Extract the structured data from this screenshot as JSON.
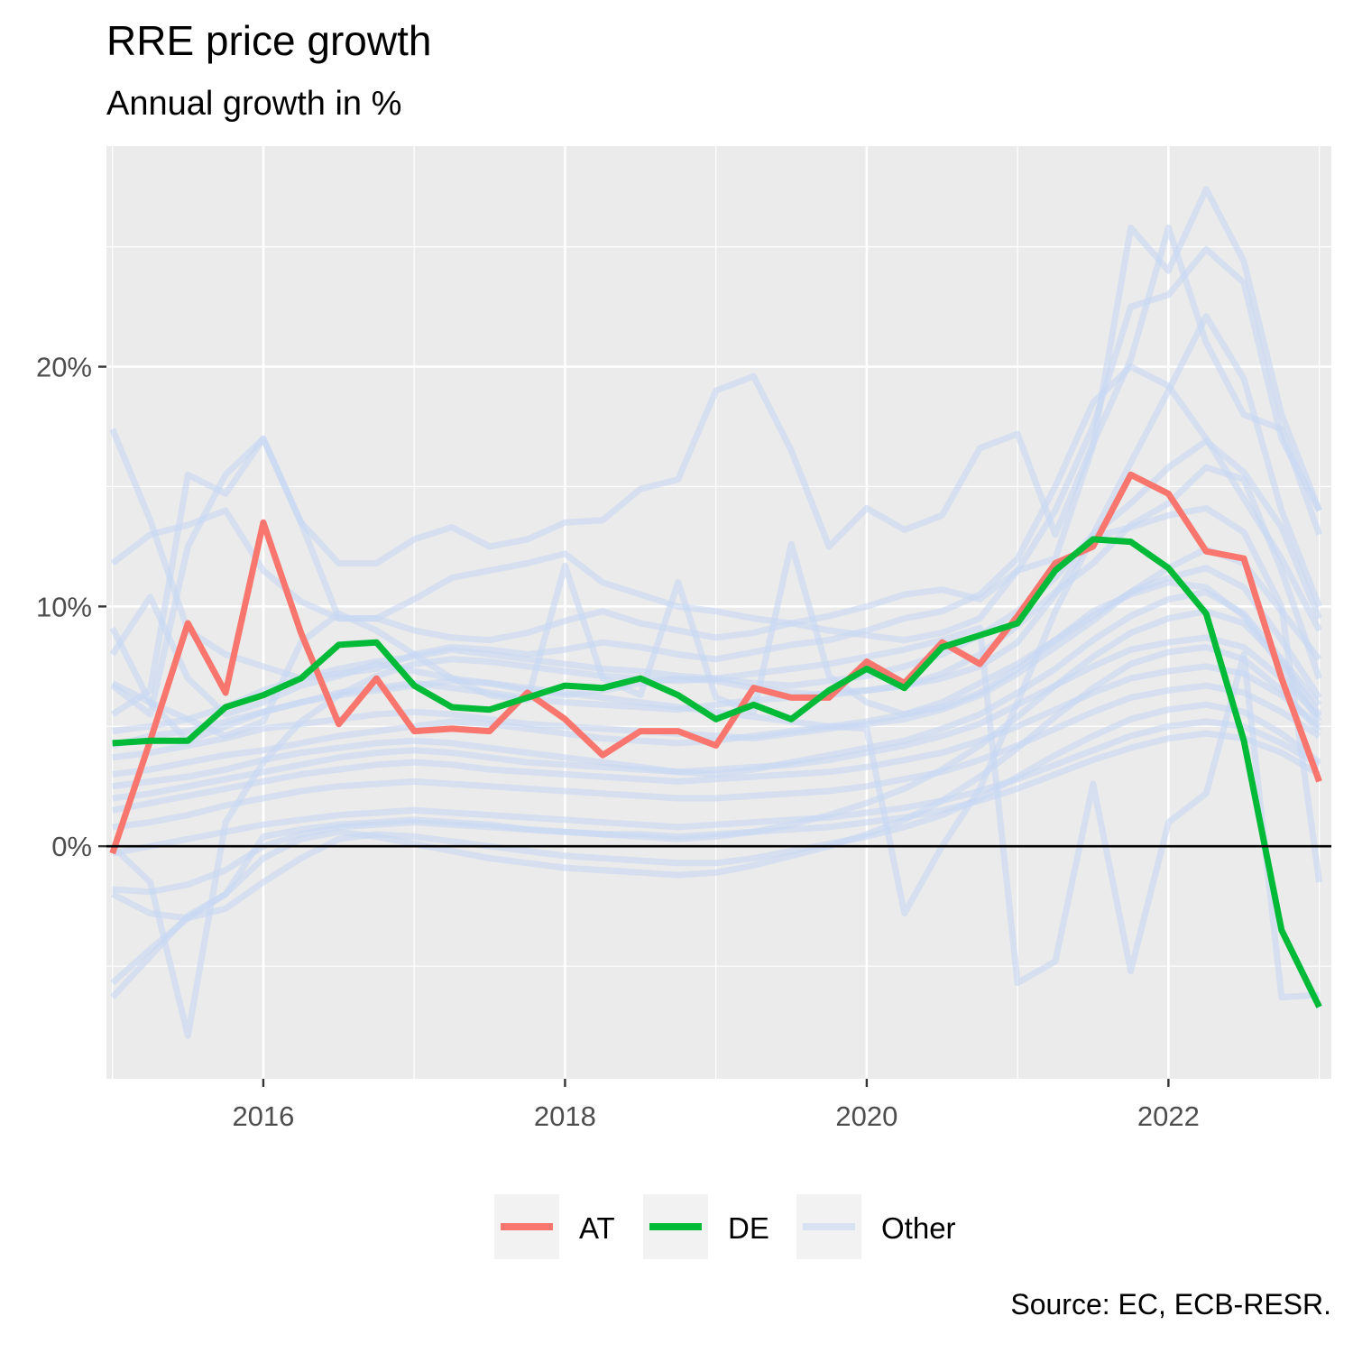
{
  "chart_data": {
    "type": "line",
    "title": "RRE price growth",
    "subtitle": "Annual growth in %",
    "caption": "Source: EC, ECB-RESR.",
    "xlabel": "",
    "ylabel": "",
    "x_ticks": [
      "2016",
      "2018",
      "2020",
      "2022"
    ],
    "y_ticks": [
      "0%",
      "10%",
      "20%"
    ],
    "xlim": [
      2014.96,
      2023.08
    ],
    "ylim": [
      -9.7,
      29.2
    ],
    "grid": true,
    "legend_position": "bottom",
    "x": [
      2015.0,
      2015.25,
      2015.5,
      2015.75,
      2016.0,
      2016.25,
      2016.5,
      2016.75,
      2017.0,
      2017.25,
      2017.5,
      2017.75,
      2018.0,
      2018.25,
      2018.5,
      2018.75,
      2019.0,
      2019.25,
      2019.5,
      2019.75,
      2020.0,
      2020.25,
      2020.5,
      2020.75,
      2021.0,
      2021.25,
      2021.5,
      2021.75,
      2022.0,
      2022.25,
      2022.5,
      2022.75,
      2023.0
    ],
    "series": [
      {
        "name": "Other",
        "color": "#c6d7f3",
        "values": [
          17.4,
          13.6,
          9.0,
          8.0,
          7.5,
          7.0,
          7.2,
          7.4,
          8.0,
          8.3,
          8.2,
          8.0,
          8.2,
          8.5,
          8.3,
          8.0,
          7.8,
          8.1,
          8.4,
          8.6,
          9.0,
          9.5,
          9.8,
          10.5,
          12.0,
          15.0,
          18.5,
          20.0,
          19.2,
          17.0,
          14.5,
          12.0,
          9.0
        ]
      },
      {
        "name": "Other",
        "color": "#c6d7f3",
        "values": [
          11.8,
          13.0,
          13.4,
          14.0,
          11.5,
          10.2,
          9.5,
          9.5,
          10.3,
          11.2,
          11.5,
          11.8,
          12.2,
          11.0,
          10.5,
          10.0,
          9.8,
          9.5,
          9.3,
          9.0,
          8.8,
          8.6,
          8.9,
          9.5,
          11.5,
          14.0,
          17.5,
          22.5,
          23.0,
          24.9,
          23.5,
          17.0,
          14.0
        ]
      },
      {
        "name": "Other",
        "color": "#c6d7f3",
        "values": [
          8.0,
          10.4,
          7.0,
          5.5,
          6.0,
          6.7,
          7.1,
          7.6,
          7.3,
          7.0,
          6.8,
          6.5,
          6.3,
          6.5,
          6.8,
          7.0,
          6.9,
          6.6,
          6.4,
          6.3,
          6.5,
          6.7,
          7.0,
          7.5,
          8.5,
          10.5,
          13.0,
          16.0,
          19.0,
          22.1,
          19.5,
          14.0,
          10.0
        ]
      },
      {
        "name": "Other",
        "color": "#c6d7f3",
        "values": [
          6.7,
          5.5,
          12.5,
          15.5,
          17.0,
          13.5,
          11.8,
          11.8,
          12.8,
          13.3,
          12.5,
          12.8,
          13.5,
          13.6,
          14.9,
          15.3,
          19.0,
          19.6,
          16.5,
          12.5,
          14.1,
          13.2,
          13.8,
          16.6,
          17.2,
          13.0,
          16.8,
          20.3,
          25.8,
          21.0,
          18.0,
          17.4,
          13.0
        ]
      },
      {
        "name": "Other",
        "color": "#c6d7f3",
        "values": [
          5.5,
          6.5,
          15.5,
          14.7,
          17.0,
          13.5,
          9.5,
          9.5,
          9.0,
          8.7,
          8.6,
          8.9,
          9.4,
          9.8,
          9.3,
          9.0,
          8.7,
          8.9,
          9.3,
          9.6,
          10.0,
          10.5,
          10.7,
          10.3,
          11.5,
          12.0,
          16.7,
          25.8,
          24.0,
          27.4,
          24.4,
          18.0,
          14.0
        ]
      },
      {
        "name": "Other",
        "color": "#c6d7f3",
        "values": [
          4.8,
          5.0,
          5.3,
          5.8,
          6.5,
          7.0,
          7.4,
          7.7,
          7.9,
          8.2,
          8.0,
          7.8,
          7.6,
          7.4,
          7.3,
          7.1,
          7.0,
          6.8,
          6.7,
          6.9,
          7.1,
          7.5,
          8.0,
          8.8,
          9.8,
          11.2,
          13.0,
          14.3,
          15.8,
          16.9,
          15.6,
          13.3,
          9.5
        ]
      },
      {
        "name": "Other",
        "color": "#c6d7f3",
        "values": [
          4.2,
          4.6,
          4.8,
          5.2,
          5.6,
          6.0,
          6.4,
          6.6,
          6.8,
          6.6,
          6.4,
          6.2,
          6.0,
          5.9,
          5.8,
          5.7,
          5.9,
          6.1,
          6.2,
          6.4,
          6.5,
          6.7,
          7.2,
          8.0,
          9.2,
          10.6,
          11.8,
          13.4,
          14.3,
          15.8,
          15.3,
          11.5,
          7.0
        ]
      },
      {
        "name": "Other",
        "color": "#c6d7f3",
        "values": [
          3.7,
          3.9,
          4.2,
          4.5,
          4.9,
          5.1,
          5.3,
          5.5,
          5.6,
          5.5,
          5.3,
          5.1,
          5.0,
          4.9,
          4.8,
          4.7,
          4.6,
          4.5,
          4.7,
          4.9,
          5.1,
          5.3,
          5.7,
          6.3,
          7.2,
          8.3,
          9.4,
          10.6,
          11.6,
          12.4,
          11.8,
          9.8,
          7.8
        ]
      },
      {
        "name": "Other",
        "color": "#c6d7f3",
        "values": [
          3.0,
          3.2,
          3.5,
          3.8,
          4.0,
          4.3,
          4.6,
          4.8,
          5.0,
          5.2,
          5.1,
          4.9,
          4.7,
          4.5,
          4.4,
          4.3,
          4.4,
          4.6,
          4.8,
          5.0,
          5.2,
          5.5,
          6.0,
          6.8,
          7.6,
          8.6,
          9.6,
          10.6,
          11.2,
          11.6,
          10.8,
          8.6,
          6.2
        ]
      },
      {
        "name": "Other",
        "color": "#c6d7f3",
        "values": [
          2.5,
          2.7,
          2.9,
          3.2,
          3.6,
          3.9,
          4.1,
          4.3,
          4.4,
          4.3,
          4.1,
          3.9,
          3.7,
          3.5,
          3.3,
          3.1,
          3.0,
          3.2,
          3.5,
          3.8,
          4.1,
          4.4,
          4.9,
          5.5,
          6.4,
          7.4,
          8.6,
          9.6,
          10.3,
          10.6,
          9.7,
          7.8,
          5.9
        ]
      },
      {
        "name": "Other",
        "color": "#c6d7f3",
        "values": [
          2.0,
          2.2,
          2.5,
          2.8,
          3.1,
          3.4,
          3.7,
          3.9,
          4.0,
          3.9,
          3.7,
          3.5,
          3.4,
          3.3,
          3.2,
          3.1,
          3.2,
          3.3,
          3.4,
          3.6,
          3.9,
          4.2,
          4.6,
          5.1,
          5.9,
          6.7,
          7.5,
          8.2,
          8.5,
          8.7,
          8.3,
          7.0,
          5.4
        ]
      },
      {
        "name": "Other",
        "color": "#c6d7f3",
        "values": [
          1.5,
          1.8,
          2.1,
          2.4,
          2.7,
          3.0,
          3.2,
          3.4,
          3.5,
          3.4,
          3.2,
          3.1,
          3.0,
          2.9,
          2.8,
          2.7,
          2.8,
          2.9,
          3.0,
          3.1,
          3.3,
          3.6,
          3.9,
          4.4,
          5.0,
          5.7,
          6.4,
          7.0,
          7.3,
          7.5,
          7.2,
          6.3,
          5.0
        ]
      },
      {
        "name": "Other",
        "color": "#c6d7f3",
        "values": [
          0.8,
          1.0,
          1.3,
          1.7,
          2.0,
          2.3,
          2.5,
          2.6,
          2.7,
          2.6,
          2.5,
          2.4,
          2.3,
          2.2,
          2.1,
          2.0,
          2.0,
          2.1,
          2.2,
          2.3,
          2.5,
          2.8,
          3.1,
          3.6,
          4.2,
          4.9,
          5.6,
          6.2,
          6.5,
          6.7,
          6.4,
          5.6,
          4.6
        ]
      },
      {
        "name": "Other",
        "color": "#c6d7f3",
        "values": [
          -0.3,
          0.0,
          0.3,
          0.6,
          0.9,
          1.1,
          1.3,
          1.4,
          1.5,
          1.4,
          1.3,
          1.2,
          1.1,
          1.0,
          0.9,
          0.8,
          0.9,
          1.0,
          1.1,
          1.2,
          1.4,
          1.6,
          1.9,
          2.3,
          2.8,
          3.4,
          4.0,
          4.6,
          5.0,
          5.2,
          5.0,
          4.3,
          3.4
        ]
      },
      {
        "name": "Other",
        "color": "#c6d7f3",
        "values": [
          -1.8,
          -1.9,
          -1.6,
          -1.0,
          0.0,
          0.5,
          0.8,
          0.9,
          1.0,
          0.9,
          0.8,
          0.7,
          0.6,
          0.5,
          0.5,
          0.4,
          0.5,
          0.6,
          0.7,
          0.8,
          1.0,
          1.2,
          1.5,
          1.9,
          2.4,
          3.0,
          3.6,
          4.1,
          4.5,
          4.7,
          4.5,
          3.9,
          3.0
        ]
      },
      {
        "name": "Other",
        "color": "#c6d7f3",
        "values": [
          -2.0,
          -2.8,
          -3.0,
          -2.6,
          -1.5,
          -0.5,
          0.3,
          0.5,
          0.4,
          0.2,
          0.0,
          -0.2,
          -0.4,
          -0.5,
          -0.6,
          -0.7,
          -0.7,
          -0.5,
          -0.2,
          0.1,
          0.4,
          0.8,
          1.3,
          2.0,
          2.9,
          3.8,
          4.6,
          5.3,
          5.7,
          5.9,
          5.6,
          4.7,
          3.5
        ]
      },
      {
        "name": "Other",
        "color": "#c6d7f3",
        "values": [
          -5.7,
          -4.3,
          -3.0,
          -2.0,
          -0.5,
          0.3,
          0.6,
          0.4,
          0.1,
          -0.2,
          -0.5,
          -0.7,
          -0.9,
          -1.0,
          -1.1,
          -1.2,
          -1.1,
          -0.8,
          -0.4,
          0.0,
          0.5,
          1.1,
          1.9,
          2.9,
          4.1,
          5.4,
          6.6,
          7.6,
          8.1,
          8.3,
          7.8,
          6.5,
          4.8
        ]
      },
      {
        "name": "Other",
        "color": "#c6d7f3",
        "values": [
          -6.3,
          -4.6,
          -2.9,
          -2.0,
          0.4,
          0.7,
          0.9,
          1.0,
          1.1,
          1.0,
          0.9,
          0.7,
          0.6,
          0.5,
          0.4,
          0.3,
          0.4,
          0.6,
          0.9,
          1.3,
          1.8,
          2.4,
          3.2,
          4.2,
          5.4,
          6.7,
          7.9,
          8.9,
          9.5,
          9.8,
          9.3,
          7.7,
          5.5
        ]
      },
      {
        "name": "Other",
        "color": "#c6d7f3",
        "values": [
          0.0,
          -1.5,
          -7.9,
          1.0,
          3.5,
          5.2,
          6.3,
          7.1,
          7.6,
          7.8,
          7.7,
          7.5,
          7.3,
          7.1,
          7.0,
          6.9,
          7.0,
          7.2,
          7.4,
          7.6,
          7.9,
          8.2,
          8.6,
          9.1,
          -5.7,
          -4.8,
          2.6,
          -5.2,
          1.0,
          2.2,
          8.0,
          -6.3,
          -6.2
        ]
      },
      {
        "name": "Other",
        "color": "#c6d7f3",
        "values": [
          9.1,
          6.0,
          4.4,
          5.0,
          5.6,
          6.0,
          6.3,
          6.5,
          6.7,
          6.9,
          6.8,
          6.6,
          6.4,
          6.2,
          6.0,
          5.8,
          5.6,
          5.4,
          5.2,
          5.0,
          4.9,
          -2.8,
          0.0,
          2.4,
          6.0,
          9.8,
          12.9,
          13.3,
          13.8,
          14.1,
          13.1,
          10.0,
          -1.5
        ]
      },
      {
        "name": "Other",
        "color": "#c6d7f3",
        "values": [
          6.8,
          6.0,
          5.3,
          4.6,
          5.2,
          8.5,
          9.7,
          9.0,
          8.0,
          7.0,
          6.3,
          6.1,
          11.7,
          7.0,
          6.3,
          11.0,
          6.2,
          5.6,
          12.6,
          7.1,
          6.0,
          5.5,
          5.8,
          6.4,
          7.4,
          8.6,
          9.8,
          10.5,
          11.0,
          10.8,
          9.6,
          7.5,
          5.2
        ]
      },
      {
        "name": "AT",
        "color": "#f8766d",
        "values": [
          -0.3,
          4.4,
          9.3,
          6.4,
          13.5,
          8.9,
          5.1,
          7.0,
          4.8,
          4.9,
          4.8,
          6.4,
          5.3,
          3.8,
          4.8,
          4.8,
          4.2,
          6.6,
          6.2,
          6.2,
          7.7,
          6.8,
          8.5,
          7.6,
          9.6,
          11.8,
          12.5,
          15.5,
          14.7,
          12.3,
          12.0,
          7.0,
          2.7
        ]
      },
      {
        "name": "DE",
        "color": "#00ba38",
        "values": [
          4.3,
          4.4,
          4.4,
          5.8,
          6.3,
          7.0,
          8.4,
          8.5,
          6.7,
          5.8,
          5.7,
          6.2,
          6.7,
          6.6,
          7.0,
          6.3,
          5.3,
          5.9,
          5.3,
          6.5,
          7.4,
          6.6,
          8.3,
          8.8,
          9.3,
          11.5,
          12.8,
          12.7,
          11.6,
          9.7,
          4.4,
          -3.5,
          -6.7
        ]
      }
    ],
    "legend": [
      {
        "label": "AT",
        "color": "#f8766d"
      },
      {
        "label": "DE",
        "color": "#00ba38"
      },
      {
        "label": "Other",
        "color": "#c6d7f3"
      }
    ]
  }
}
